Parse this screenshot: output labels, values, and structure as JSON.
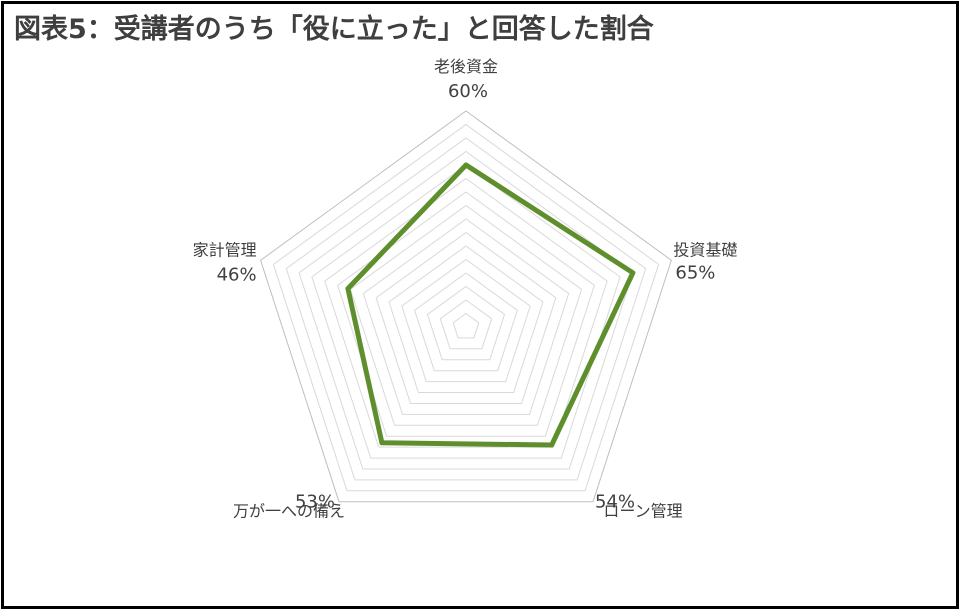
{
  "title": "図表5：受講者のうち「役に立った」と回答した割合",
  "chart_data": {
    "type": "radar",
    "categories": [
      "老後資金",
      "投資基礎",
      "ローン管理",
      "万が一への備え",
      "家計管理"
    ],
    "values": [
      60,
      65,
      54,
      53,
      46
    ],
    "value_labels": [
      "60%",
      "65%",
      "54%",
      "53%",
      "46%"
    ],
    "rlim": [
      0,
      80
    ],
    "grid": true,
    "legend": "none",
    "line_color": "#5f8f2c",
    "grid_color": "#d9d9d9"
  }
}
